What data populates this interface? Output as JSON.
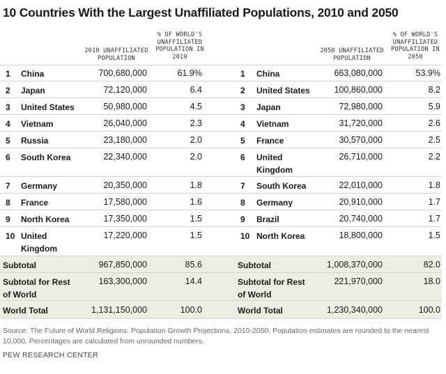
{
  "chart_data": {
    "type": "table",
    "title": "10 Countries With the Largest Unaffiliated Populations, 2010 and 2050",
    "tables": [
      {
        "headers": {
          "pop": "2010 UNAFFILIATED POPULATION",
          "pct": "% OF WORLD'S UNAFFILIATED POPULATION IN 2010"
        },
        "rows": [
          {
            "rank": "1",
            "country": "China",
            "pop": "700,680,000",
            "pct": "61.9%"
          },
          {
            "rank": "2",
            "country": "Japan",
            "pop": "72,120,000",
            "pct": "6.4"
          },
          {
            "rank": "3",
            "country": "United States",
            "pop": "50,980,000",
            "pct": "4.5"
          },
          {
            "rank": "4",
            "country": "Vietnam",
            "pop": "26,040,000",
            "pct": "2.3"
          },
          {
            "rank": "5",
            "country": "Russia",
            "pop": "23,180,000",
            "pct": "2.0"
          },
          {
            "rank": "6",
            "country": "South Korea",
            "pop": "22,340,000",
            "pct": "2.0"
          },
          {
            "rank": "7",
            "country": "Germany",
            "pop": "20,350,000",
            "pct": "1.8"
          },
          {
            "rank": "8",
            "country": "France",
            "pop": "17,580,000",
            "pct": "1.6"
          },
          {
            "rank": "9",
            "country": "North Korea",
            "pop": "17,350,000",
            "pct": "1.5"
          },
          {
            "rank": "10",
            "country": "United Kingdom",
            "pop": "17,220,000",
            "pct": "1.5"
          }
        ],
        "summary": [
          {
            "label": "Subtotal",
            "pop": "967,850,000",
            "pct": "85.6"
          },
          {
            "label": "Subtotal for Rest of World",
            "pop": "163,300,000",
            "pct": "14.4"
          },
          {
            "label": "World Total",
            "pop": "1,131,150,000",
            "pct": "100.0"
          }
        ]
      },
      {
        "headers": {
          "pop": "2050 UNAFFILIATED POPULATION",
          "pct": "% OF WORLD'S UNAFFILIATED POPULATION IN 2050"
        },
        "rows": [
          {
            "rank": "1",
            "country": "China",
            "pop": "663,080,000",
            "pct": "53.9%"
          },
          {
            "rank": "2",
            "country": "United States",
            "pop": "100,860,000",
            "pct": "8.2"
          },
          {
            "rank": "3",
            "country": "Japan",
            "pop": "72,980,000",
            "pct": "5.9"
          },
          {
            "rank": "4",
            "country": "Vietnam",
            "pop": "31,720,000",
            "pct": "2.6"
          },
          {
            "rank": "5",
            "country": "France",
            "pop": "30,570,000",
            "pct": "2.5"
          },
          {
            "rank": "6",
            "country": "United Kingdom",
            "pop": "26,710,000",
            "pct": "2.2"
          },
          {
            "rank": "7",
            "country": "South Korea",
            "pop": "22,010,000",
            "pct": "1.8"
          },
          {
            "rank": "8",
            "country": "Germany",
            "pop": "20,910,000",
            "pct": "1.7"
          },
          {
            "rank": "9",
            "country": "Brazil",
            "pop": "20,740,000",
            "pct": "1.7"
          },
          {
            "rank": "10",
            "country": "North Korea",
            "pop": "18,800,000",
            "pct": "1.5"
          }
        ],
        "summary": [
          {
            "label": "Subtotal",
            "pop": "1,008,370,000",
            "pct": "82.0"
          },
          {
            "label": "Subtotal for Rest of World",
            "pop": "221,970,000",
            "pct": "18.0"
          },
          {
            "label": "World Total",
            "pop": "1,230,340,000",
            "pct": "100.0"
          }
        ]
      }
    ]
  },
  "footer": {
    "source": "Source: The Future of World Religions: Population Growth Projections, 2010-2050. Population estimates are rounded to the nearest 10,000. Percentages are calculated from unrounded numbers.",
    "brand": "PEW RESEARCH CENTER"
  }
}
